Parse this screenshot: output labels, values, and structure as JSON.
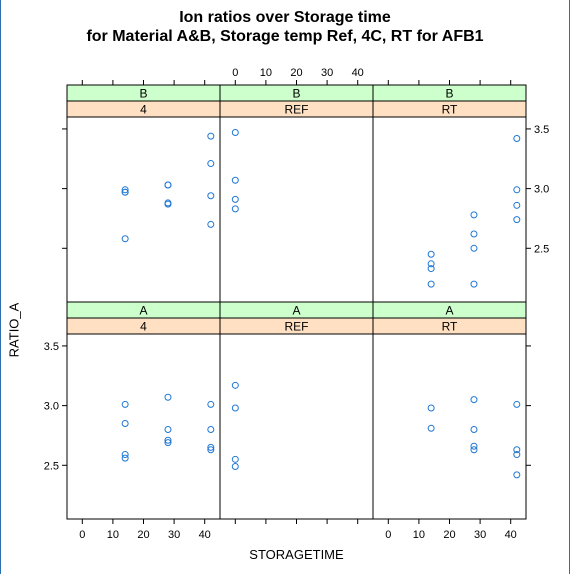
{
  "chart_data": {
    "type": "scatter",
    "title_lines": [
      "Ion ratios over Storage time",
      "for Material A&B, Storage temp Ref, 4C, RT for AFB1"
    ],
    "xlabel": "STORAGETIME",
    "ylabel": "RATIO_A",
    "xlim": [
      -5,
      45
    ],
    "ylim": [
      2.05,
      3.6
    ],
    "x_ticks": [
      0,
      10,
      20,
      30,
      40
    ],
    "y_ticks": [
      2.5,
      3.0,
      3.5
    ],
    "grid": false,
    "point_color": "#1f77d4",
    "strip_colors": {
      "material": "#ccffcc",
      "temp": "#ffe0c2"
    },
    "panels": [
      {
        "material": "B",
        "temp": "4",
        "x": [
          14,
          14,
          14,
          14,
          28,
          28,
          28,
          28,
          42,
          42,
          42,
          42
        ],
        "y": [
          2.99,
          2.97,
          2.97,
          2.58,
          3.03,
          3.03,
          2.88,
          2.87,
          3.44,
          3.21,
          2.94,
          2.7
        ]
      },
      {
        "material": "B",
        "temp": "REF",
        "x": [
          0,
          0,
          0,
          0
        ],
        "y": [
          3.47,
          3.07,
          2.91,
          2.83
        ]
      },
      {
        "material": "B",
        "temp": "RT",
        "x": [
          14,
          14,
          14,
          14,
          28,
          28,
          28,
          28,
          42,
          42,
          42,
          42
        ],
        "y": [
          2.45,
          2.37,
          2.33,
          2.2,
          2.78,
          2.62,
          2.5,
          2.2,
          3.42,
          2.99,
          2.86,
          2.74
        ]
      },
      {
        "material": "A",
        "temp": "4",
        "x": [
          14,
          14,
          14,
          14,
          28,
          28,
          28,
          28,
          42,
          42,
          42,
          42
        ],
        "y": [
          3.01,
          2.85,
          2.59,
          2.56,
          3.07,
          2.8,
          2.71,
          2.69,
          3.01,
          2.8,
          2.65,
          2.63
        ]
      },
      {
        "material": "A",
        "temp": "REF",
        "x": [
          0,
          0,
          0,
          0
        ],
        "y": [
          3.17,
          2.98,
          2.55,
          2.49
        ]
      },
      {
        "material": "A",
        "temp": "RT",
        "x": [
          14,
          14,
          28,
          28,
          28,
          28,
          42,
          42,
          42,
          42
        ],
        "y": [
          2.98,
          2.81,
          3.05,
          2.8,
          2.66,
          2.63,
          3.01,
          2.63,
          2.59,
          2.42
        ]
      }
    ]
  }
}
